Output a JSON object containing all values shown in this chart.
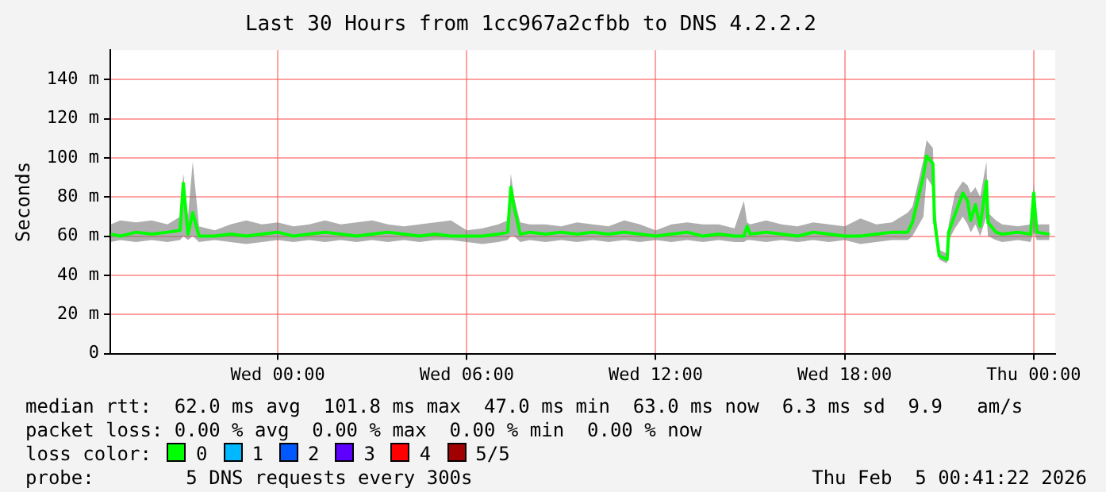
{
  "chart_data": {
    "type": "line",
    "title": "Last 30 Hours from 1cc967a2cfbb to DNS 4.2.2.2",
    "ylabel": "Seconds",
    "x": [
      "2026-02-03T18:42",
      "2026-02-03T19:00",
      "2026-02-03T19:30",
      "2026-02-03T20:00",
      "2026-02-03T20:30",
      "2026-02-03T20:54",
      "2026-02-03T21:00",
      "2026-02-03T21:09",
      "2026-02-03T21:18",
      "2026-02-03T21:30",
      "2026-02-03T22:00",
      "2026-02-03T22:30",
      "2026-02-03T23:00",
      "2026-02-03T23:30",
      "2026-02-04T00:00",
      "2026-02-04T00:30",
      "2026-02-04T01:00",
      "2026-02-04T01:30",
      "2026-02-04T02:00",
      "2026-02-04T02:30",
      "2026-02-04T03:00",
      "2026-02-04T03:30",
      "2026-02-04T04:00",
      "2026-02-04T04:30",
      "2026-02-04T05:00",
      "2026-02-04T05:30",
      "2026-02-04T06:00",
      "2026-02-04T06:30",
      "2026-02-04T07:00",
      "2026-02-04T07:18",
      "2026-02-04T07:24",
      "2026-02-04T07:30",
      "2026-02-04T07:42",
      "2026-02-04T08:00",
      "2026-02-04T08:30",
      "2026-02-04T09:00",
      "2026-02-04T09:30",
      "2026-02-04T10:00",
      "2026-02-04T10:30",
      "2026-02-04T11:00",
      "2026-02-04T11:30",
      "2026-02-04T12:00",
      "2026-02-04T12:30",
      "2026-02-04T13:00",
      "2026-02-04T13:30",
      "2026-02-04T14:00",
      "2026-02-04T14:30",
      "2026-02-04T14:48",
      "2026-02-04T14:54",
      "2026-02-04T15:00",
      "2026-02-04T15:30",
      "2026-02-04T16:00",
      "2026-02-04T16:30",
      "2026-02-04T17:00",
      "2026-02-04T17:30",
      "2026-02-04T18:00",
      "2026-02-04T18:30",
      "2026-02-04T19:00",
      "2026-02-04T19:30",
      "2026-02-04T20:00",
      "2026-02-04T20:09",
      "2026-02-04T20:30",
      "2026-02-04T20:36",
      "2026-02-04T20:48",
      "2026-02-04T20:51",
      "2026-02-04T20:54",
      "2026-02-04T21:00",
      "2026-02-04T21:15",
      "2026-02-04T21:18",
      "2026-02-04T21:30",
      "2026-02-04T21:45",
      "2026-02-04T21:54",
      "2026-02-04T22:00",
      "2026-02-04T22:09",
      "2026-02-04T22:18",
      "2026-02-04T22:30",
      "2026-02-04T22:33",
      "2026-02-04T22:48",
      "2026-02-04T23:00",
      "2026-02-04T23:30",
      "2026-02-04T23:54",
      "2026-02-05T00:00",
      "2026-02-05T00:06",
      "2026-02-05T00:30"
    ],
    "series": [
      {
        "name": "0",
        "color": "#00ff00",
        "values": [
          61,
          60,
          62,
          61,
          62,
          63,
          87,
          61,
          72,
          60,
          60,
          61,
          60,
          61,
          62,
          60,
          61,
          62,
          61,
          60,
          61,
          62,
          61,
          60,
          61,
          60,
          60,
          60,
          61,
          62,
          85,
          75,
          61,
          62,
          61,
          62,
          61,
          62,
          61,
          62,
          61,
          60,
          61,
          62,
          60,
          61,
          60,
          60,
          65,
          61,
          62,
          61,
          60,
          62,
          61,
          60,
          60,
          61,
          62,
          62,
          67,
          91,
          101,
          97,
          68,
          62,
          50,
          48,
          62,
          71,
          82,
          78,
          68,
          76,
          65,
          88,
          67,
          62,
          61,
          62,
          61,
          82,
          62,
          61
        ],
        "lower": [
          57,
          58,
          57,
          58,
          57,
          58,
          60,
          58,
          60,
          57,
          58,
          57,
          56,
          57,
          58,
          57,
          58,
          57,
          58,
          57,
          58,
          57,
          58,
          57,
          58,
          58,
          57,
          56,
          57,
          58,
          60,
          60,
          57,
          58,
          57,
          58,
          57,
          58,
          57,
          58,
          57,
          58,
          57,
          58,
          57,
          58,
          57,
          57,
          58,
          58,
          57,
          58,
          57,
          58,
          57,
          58,
          56,
          57,
          58,
          58,
          60,
          70,
          90,
          85,
          63,
          58,
          48,
          46,
          58,
          64,
          70,
          66,
          62,
          66,
          60,
          70,
          60,
          58,
          57,
          58,
          57,
          62,
          58,
          58
        ],
        "upper": [
          66,
          68,
          67,
          68,
          66,
          70,
          92,
          70,
          98,
          65,
          63,
          66,
          68,
          66,
          67,
          65,
          66,
          68,
          66,
          67,
          68,
          66,
          65,
          66,
          67,
          68,
          63,
          64,
          66,
          68,
          92,
          80,
          67,
          66,
          66,
          65,
          67,
          66,
          65,
          68,
          66,
          63,
          66,
          67,
          66,
          66,
          64,
          78,
          67,
          66,
          68,
          66,
          65,
          67,
          66,
          65,
          69,
          66,
          67,
          72,
          75,
          99,
          109,
          105,
          80,
          70,
          53,
          51,
          66,
          82,
          88,
          86,
          82,
          85,
          80,
          98,
          72,
          68,
          66,
          65,
          66,
          87,
          66,
          66
        ]
      },
      {
        "name": "1",
        "color": "#00b8ff",
        "values": [
          null,
          null,
          null,
          null,
          null,
          null,
          null,
          null,
          null,
          null,
          null,
          null,
          null,
          null,
          null,
          null,
          null,
          null,
          null,
          null,
          null,
          null,
          null,
          null,
          null,
          null,
          null,
          null,
          null,
          null,
          null,
          null,
          null,
          null,
          null,
          null,
          null,
          null,
          null,
          null,
          null,
          null,
          null,
          null,
          null,
          null,
          null,
          null,
          null,
          null,
          null,
          null,
          null,
          null,
          null,
          null,
          null,
          null,
          null,
          null,
          null,
          null,
          null,
          null,
          null,
          null,
          null,
          null,
          null,
          null,
          null,
          null,
          null,
          null,
          null,
          null,
          null,
          null,
          null,
          null,
          null,
          null,
          null,
          null
        ]
      },
      {
        "name": "2",
        "color": "#0059ff",
        "values": [
          null,
          null,
          null,
          null,
          null,
          null,
          null,
          null,
          null,
          null,
          null,
          null,
          null,
          null,
          null,
          null,
          null,
          null,
          null,
          null,
          null,
          null,
          null,
          null,
          null,
          null,
          null,
          null,
          null,
          null,
          null,
          null,
          null,
          null,
          null,
          null,
          null,
          null,
          null,
          null,
          null,
          null,
          null,
          null,
          null,
          null,
          null,
          null,
          null,
          null,
          null,
          null,
          null,
          null,
          null,
          null,
          null,
          null,
          null,
          null,
          null,
          null,
          null,
          null,
          null,
          null,
          null,
          null,
          null,
          null,
          null,
          null,
          null,
          null,
          null,
          null,
          null,
          null,
          null,
          null,
          null,
          null,
          null,
          null
        ]
      },
      {
        "name": "3",
        "color": "#5e00ff",
        "values": [
          null,
          null,
          null,
          null,
          null,
          null,
          null,
          null,
          null,
          null,
          null,
          null,
          null,
          null,
          null,
          null,
          null,
          null,
          null,
          null,
          null,
          null,
          null,
          null,
          null,
          null,
          null,
          null,
          null,
          null,
          null,
          null,
          null,
          null,
          null,
          null,
          null,
          null,
          null,
          null,
          null,
          null,
          null,
          null,
          null,
          null,
          null,
          null,
          null,
          null,
          null,
          null,
          null,
          null,
          null,
          null,
          null,
          null,
          null,
          null,
          null,
          null,
          null,
          null,
          null,
          null,
          null,
          null,
          null,
          null,
          null,
          null,
          null,
          null,
          null,
          null,
          null,
          null,
          null,
          null,
          null,
          null,
          null,
          null
        ]
      },
      {
        "name": "4",
        "color": "#ff0000",
        "values": [
          null,
          null,
          null,
          null,
          null,
          null,
          null,
          null,
          null,
          null,
          null,
          null,
          null,
          null,
          null,
          null,
          null,
          null,
          null,
          null,
          null,
          null,
          null,
          null,
          null,
          null,
          null,
          null,
          null,
          null,
          null,
          null,
          null,
          null,
          null,
          null,
          null,
          null,
          null,
          null,
          null,
          null,
          null,
          null,
          null,
          null,
          null,
          null,
          null,
          null,
          null,
          null,
          null,
          null,
          null,
          null,
          null,
          null,
          null,
          null,
          null,
          null,
          null,
          null,
          null,
          null,
          null,
          null,
          null,
          null,
          null,
          null,
          null,
          null,
          null,
          null,
          null,
          null,
          null,
          null,
          null,
          null,
          null,
          null
        ]
      },
      {
        "name": "5/5",
        "color": "#a10000",
        "values": [
          null,
          null,
          null,
          null,
          null,
          null,
          null,
          null,
          null,
          null,
          null,
          null,
          null,
          null,
          null,
          null,
          null,
          null,
          null,
          null,
          null,
          null,
          null,
          null,
          null,
          null,
          null,
          null,
          null,
          null,
          null,
          null,
          null,
          null,
          null,
          null,
          null,
          null,
          null,
          null,
          null,
          null,
          null,
          null,
          null,
          null,
          null,
          null,
          null,
          null,
          null,
          null,
          null,
          null,
          null,
          null,
          null,
          null,
          null,
          null,
          null,
          null,
          null,
          null,
          null,
          null,
          null,
          null,
          null,
          null,
          null,
          null,
          null,
          null,
          null,
          null,
          null,
          null,
          null,
          null,
          null,
          null,
          null,
          null
        ]
      }
    ],
    "xlim": [
      "2026-02-03T18:41",
      "2026-02-05T00:41"
    ],
    "xticks": [
      {
        "value": "2026-02-04T00:00",
        "label": "Wed 00:00"
      },
      {
        "value": "2026-02-04T06:00",
        "label": "Wed 06:00"
      },
      {
        "value": "2026-02-04T12:00",
        "label": "Wed 12:00"
      },
      {
        "value": "2026-02-04T18:00",
        "label": "Wed 18:00"
      },
      {
        "value": "2026-02-05T00:00",
        "label": "Thu 00:00"
      }
    ],
    "ylim": [
      0,
      155
    ],
    "yticks": [
      {
        "value": 0,
        "label": "0"
      },
      {
        "value": 20,
        "label": "20 m"
      },
      {
        "value": 40,
        "label": "40 m"
      },
      {
        "value": 60,
        "label": "60 m"
      },
      {
        "value": 80,
        "label": "80 m"
      },
      {
        "value": 100,
        "label": "100 m"
      },
      {
        "value": 120,
        "label": "120 m"
      },
      {
        "value": 140,
        "label": "140 m"
      }
    ],
    "grid": true,
    "legend": "bottom",
    "legend_title": "loss color:",
    "marker": "none",
    "annotations": [
      "median rtt:  62.0 ms avg  101.8 ms max  47.0 ms min  63.0 ms now  6.3 ms sd  9.9   am/s",
      "packet loss: 0.00 % avg  0.00 % max  0.00 % min  0.00 % now",
      "probe:        5 DNS requests every 300s",
      "Thu Feb  5 00:41:22 2026"
    ]
  }
}
